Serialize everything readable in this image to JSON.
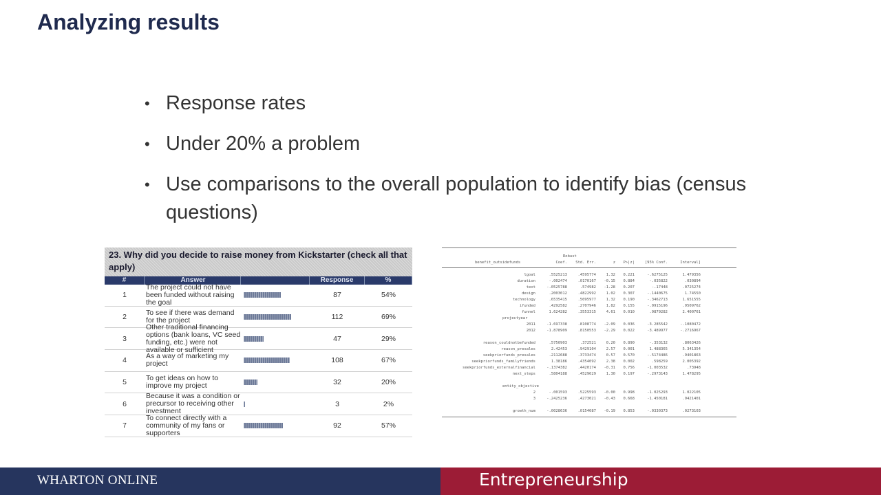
{
  "slide": {
    "title": "Analyzing results",
    "bullets": [
      "Response rates",
      "Under 20% a problem",
      "Use comparisons to the overall population to identify bias (census questions)"
    ]
  },
  "survey": {
    "title": "23.  Why did you decide to raise money from Kickstarter (check all that apply)",
    "columns": [
      "#",
      "Answer",
      "",
      "Response",
      "%"
    ],
    "rows": [
      {
        "num": "1",
        "answer": "The project could not have been funded without raising the goal",
        "response": "87",
        "percent": "54%",
        "fraction": 0.54
      },
      {
        "num": "2",
        "answer": "To see if there was demand for the project",
        "response": "112",
        "percent": "69%",
        "fraction": 0.69
      },
      {
        "num": "3",
        "answer": "Other traditional financing options (bank loans, VC seed funding, etc.) were not available or sufficient",
        "response": "47",
        "percent": "29%",
        "fraction": 0.29
      },
      {
        "num": "4",
        "answer": "As a way of marketing my project",
        "response": "108",
        "percent": "67%",
        "fraction": 0.67
      },
      {
        "num": "5",
        "answer": "To get ideas on how to improve my project",
        "response": "32",
        "percent": "20%",
        "fraction": 0.2
      },
      {
        "num": "6",
        "answer": "Because it was a condition or precursor to receiving other investment",
        "response": "3",
        "percent": "2%",
        "fraction": 0.02
      },
      {
        "num": "7",
        "answer": "To connect directly with a community of my fans or supporters",
        "response": "92",
        "percent": "57%",
        "fraction": 0.57
      }
    ]
  },
  "regression": {
    "header_top": "Robust",
    "dep_var": "benefit_outsidefunds",
    "columns": [
      "Coef.",
      "Std. Err.",
      "z",
      "P>|z|",
      "[95% Conf.",
      "Interval]"
    ],
    "rows": [
      {
        "name": "lgoal",
        "v": [
          ".5525213",
          ".4595774",
          "1.32",
          "0.221",
          "-.6275125",
          "1.479356"
        ]
      },
      {
        "name": "duration",
        "v": [
          "-.002474",
          ".0170167",
          "-0.15",
          "0.884",
          "-.035822",
          ".030894"
        ]
      },
      {
        "name": "text",
        "v": [
          "-.0525788",
          ".574982",
          "-1.28",
          "0.207",
          "-.17448",
          ".0725274"
        ]
      },
      {
        "name": "design",
        "v": [
          ".2003012",
          ".4822992",
          "1.02",
          "0.307",
          "-.1440675",
          "1.74550"
        ]
      },
      {
        "name": "technology",
        "v": [
          ".6535415",
          ".5095977",
          "1.32",
          "0.190",
          "-.3462713",
          "1.651555"
        ]
      },
      {
        "name": "ifunded",
        "v": [
          ".4292582",
          ".2707946",
          "1.82",
          "0.155",
          "-.0915196",
          ".9509762"
        ]
      },
      {
        "name": "funnel",
        "v": [
          "1.624282",
          ".3553315",
          "4.61",
          "0.010",
          ".9879282",
          "2.400761"
        ]
      },
      {
        "section": "projectyear"
      },
      {
        "name": "2011",
        "v": [
          "-1.697338",
          ".8108774",
          "-2.09",
          "0.036",
          "-3.285542",
          "-.1080472"
        ]
      },
      {
        "name": "2012",
        "v": [
          "-1.878909",
          ".8150553",
          "-2.29",
          "0.022",
          "-3.489977",
          "-.2716967"
        ]
      },
      {
        "gap": true
      },
      {
        "name": "reason_couldnotbefunded",
        "v": [
          ".5750903",
          ".372521",
          "0.20",
          "0.890",
          "-.353132",
          ".8063426"
        ]
      },
      {
        "name": "reason_presales",
        "v": [
          "2.42453",
          ".9429104",
          "2.57",
          "0.001",
          "1.488365",
          "5.341354"
        ]
      },
      {
        "name": "seekpriorfunds_presales",
        "v": [
          ".2112688",
          ".3733474",
          "0.57",
          "0.570",
          "-.5174486",
          ".9401863"
        ]
      },
      {
        "name": "seekpriorfunds_familyfriends",
        "v": [
          "1.38186",
          ".4354092",
          "2.38",
          "0.002",
          ".598259",
          "2.005392"
        ]
      },
      {
        "name": "seekpriorfunds_externalfinancial",
        "v": [
          "-.1374382",
          ".4420174",
          "-0.31",
          "0.756",
          "-1.003532",
          ".73948"
        ]
      },
      {
        "name": "next_steps",
        "v": [
          ".5804188",
          ".4529629",
          "1.30",
          "0.197",
          "-.2973143",
          "1.478295"
        ]
      },
      {
        "gap": true
      },
      {
        "section": "entity_objective"
      },
      {
        "name": "2",
        "v": [
          "-.001593",
          ".5225593",
          "-0.00",
          "0.998",
          "-1.025293",
          "1.022105"
        ]
      },
      {
        "name": "3",
        "v": [
          "-.2425236",
          ".4273021",
          "-0.43",
          "0.668",
          "-1.450181",
          ".9421401"
        ]
      },
      {
        "gap": true
      },
      {
        "name": "growth_num",
        "v": [
          "-.0028636",
          ".0154087",
          "-0.19",
          "0.853",
          "-.0330373",
          ".0273103"
        ]
      }
    ]
  },
  "footer": {
    "left": "WHARTON ONLINE",
    "right": "Entrepreneurship",
    "left_color": "#26355e",
    "right_color": "#9c1c36"
  }
}
